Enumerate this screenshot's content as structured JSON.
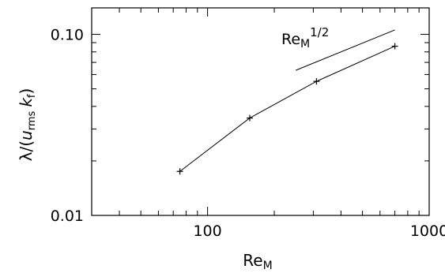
{
  "chart_data": {
    "type": "line",
    "xscale": "log",
    "yscale": "log",
    "xlim": [
      30,
      1000
    ],
    "ylim": [
      0.01,
      0.14
    ],
    "xticks": [
      100,
      1000
    ],
    "xtick_labels": [
      "100",
      "1000"
    ],
    "yticks": [
      0.01,
      0.1
    ],
    "ytick_labels": [
      "0.01",
      "0.10"
    ],
    "xlabel": {
      "base": "Re",
      "sub": "M"
    },
    "ylabel": {
      "prefix": "λ/(",
      "u": "u",
      "u_sub": "rms",
      "k": "k",
      "k_sub": "f",
      "suffix": ")"
    },
    "grid": false,
    "series": [
      {
        "marker": "plus",
        "x": [
          75,
          155,
          310,
          700
        ],
        "y": [
          0.0175,
          0.0345,
          0.055,
          0.086
        ]
      }
    ],
    "reference_line": {
      "x": [
        250,
        700
      ],
      "y": [
        0.0633,
        0.1058
      ],
      "label": {
        "base": "Re",
        "sub": "M",
        "sup": "1/2"
      }
    }
  }
}
